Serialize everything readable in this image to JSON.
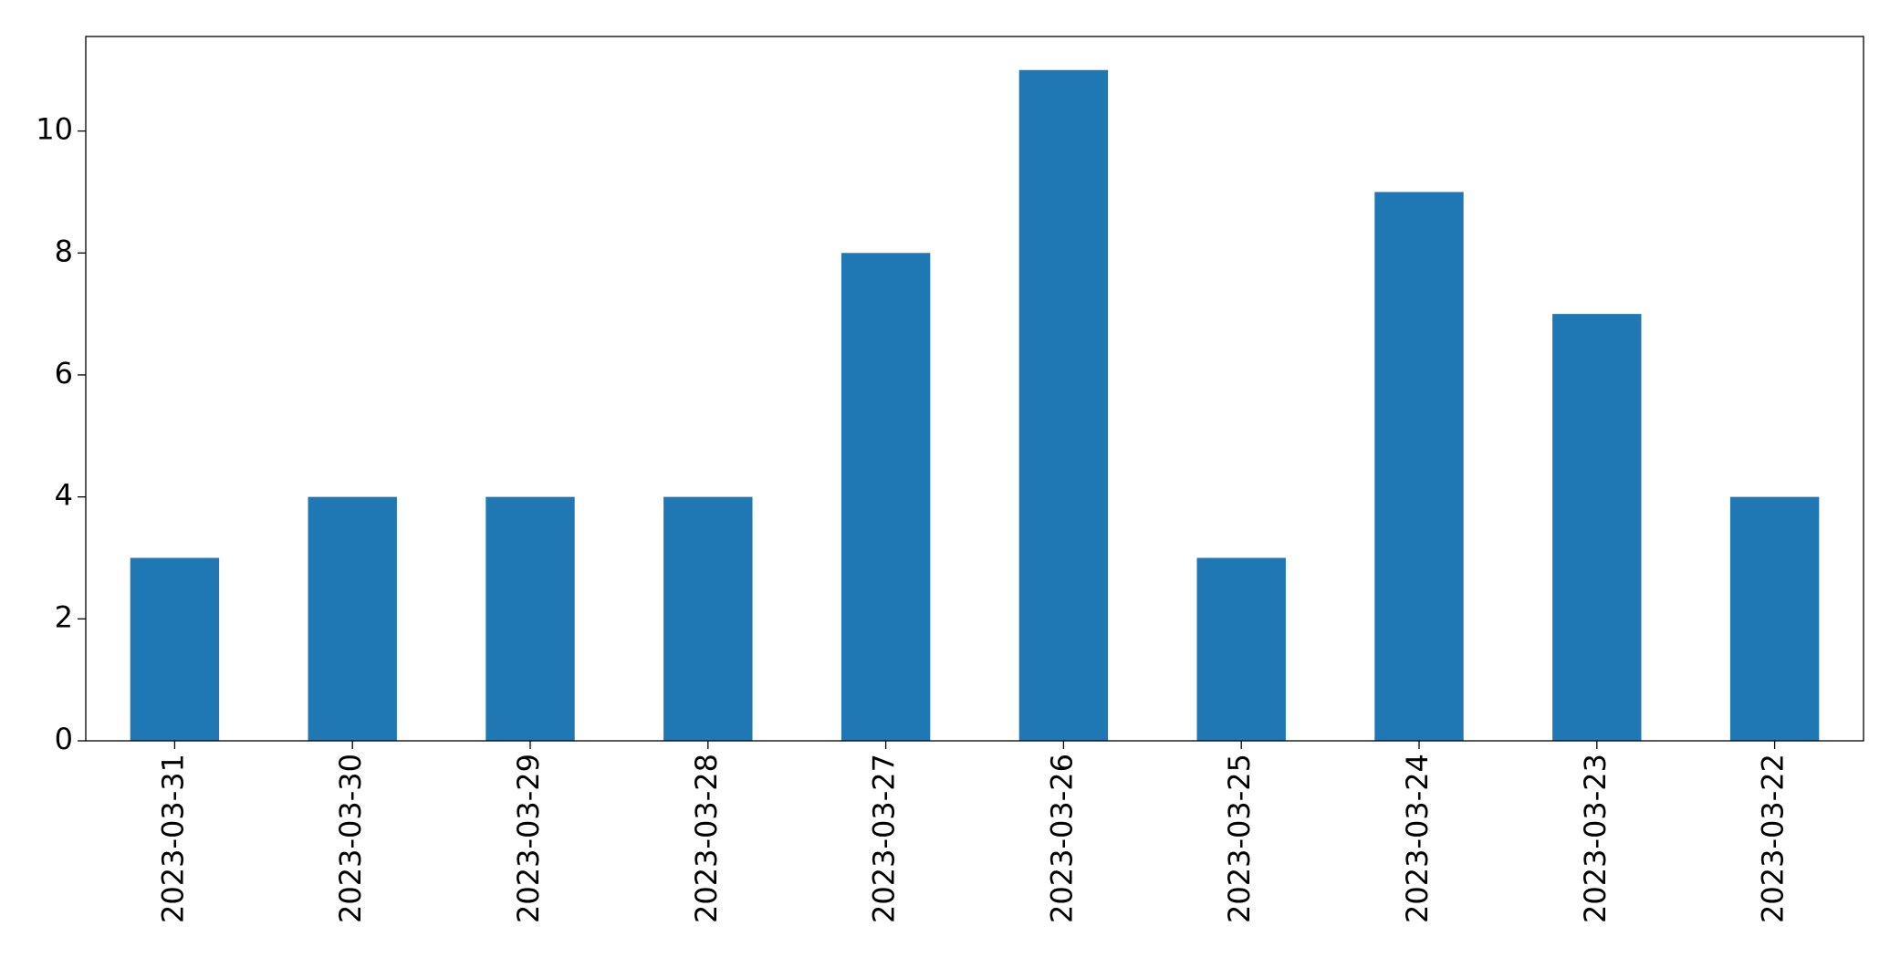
{
  "chart_data": {
    "type": "bar",
    "categories": [
      "2023-03-31",
      "2023-03-30",
      "2023-03-29",
      "2023-03-28",
      "2023-03-27",
      "2023-03-26",
      "2023-03-25",
      "2023-03-24",
      "2023-03-23",
      "2023-03-22"
    ],
    "values": [
      3,
      4,
      4,
      4,
      8,
      11,
      3,
      9,
      7,
      4
    ],
    "color": "#1f77b4",
    "ylim": [
      0,
      11.55
    ],
    "yticks": [
      0,
      2,
      4,
      6,
      8,
      10
    ],
    "grid": false
  }
}
